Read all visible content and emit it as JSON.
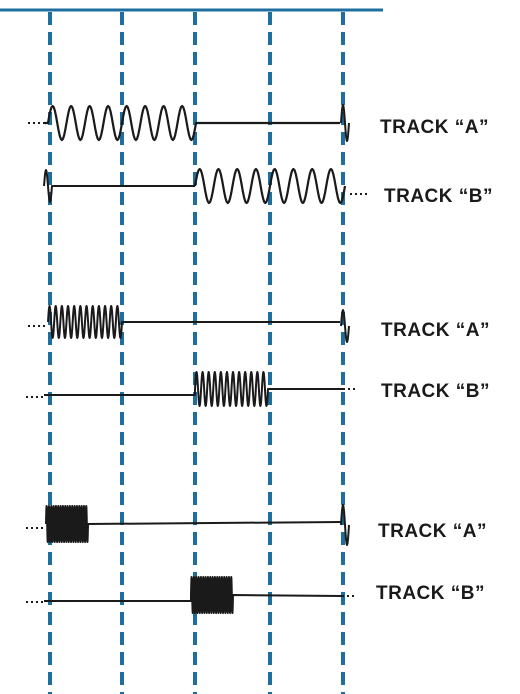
{
  "colors": {
    "timing_line": "#1e6fa0",
    "waveform": "#1a1a1a",
    "background": "#ffffff"
  },
  "rows": [
    {
      "track_label": "TRACK “A”",
      "cycle_density": "low"
    },
    {
      "track_label": "TRACK “B”",
      "cycle_density": "low"
    },
    {
      "track_label": "TRACK “A”",
      "cycle_density": "medium"
    },
    {
      "track_label": "TRACK “B”",
      "cycle_density": "medium"
    },
    {
      "track_label": "TRACK “A”",
      "cycle_density": "high"
    },
    {
      "track_label": "TRACK “B”",
      "cycle_density": "high"
    }
  ]
}
